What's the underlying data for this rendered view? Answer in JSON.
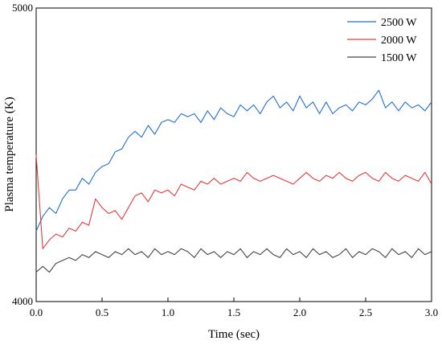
{
  "chart_data": {
    "type": "line",
    "xlabel": "Time (sec)",
    "ylabel": "Plasma temperature (K)",
    "xlim": [
      0.0,
      3.0
    ],
    "ylim": [
      4000,
      5000
    ],
    "x_ticks": [
      0.0,
      0.5,
      1.0,
      1.5,
      2.0,
      2.5,
      3.0
    ],
    "x_tick_labels": [
      "0.0",
      "0.5",
      "1.0",
      "1.5",
      "2.0",
      "2.5",
      "3.0"
    ],
    "y_tick_labels": [
      {
        "value": 4000,
        "label": "4000"
      },
      {
        "value": 5000,
        "label": "5000"
      }
    ],
    "legend_position": "top-right",
    "grid": false,
    "series": [
      {
        "name": "2500 W",
        "color": "#1f6fd6",
        "x": [
          0.0,
          0.05,
          0.1,
          0.15,
          0.2,
          0.25,
          0.3,
          0.35,
          0.4,
          0.45,
          0.5,
          0.55,
          0.6,
          0.65,
          0.7,
          0.75,
          0.8,
          0.85,
          0.9,
          0.95,
          1.0,
          1.05,
          1.1,
          1.15,
          1.2,
          1.25,
          1.3,
          1.35,
          1.4,
          1.45,
          1.5,
          1.55,
          1.6,
          1.65,
          1.7,
          1.75,
          1.8,
          1.85,
          1.9,
          1.95,
          2.0,
          2.05,
          2.1,
          2.15,
          2.2,
          2.25,
          2.3,
          2.35,
          2.4,
          2.45,
          2.5,
          2.55,
          2.6,
          2.65,
          2.7,
          2.75,
          2.8,
          2.85,
          2.9,
          2.95,
          3.0
        ],
        "values": [
          4240,
          4290,
          4320,
          4300,
          4350,
          4380,
          4380,
          4420,
          4400,
          4440,
          4460,
          4470,
          4510,
          4520,
          4560,
          4580,
          4560,
          4600,
          4570,
          4610,
          4620,
          4610,
          4640,
          4630,
          4640,
          4610,
          4650,
          4620,
          4660,
          4640,
          4630,
          4670,
          4650,
          4670,
          4640,
          4680,
          4700,
          4660,
          4680,
          4650,
          4700,
          4660,
          4680,
          4640,
          4680,
          4640,
          4660,
          4670,
          4650,
          4680,
          4670,
          4690,
          4720,
          4660,
          4680,
          4650,
          4680,
          4660,
          4670,
          4650,
          4680
        ]
      },
      {
        "name": "2000 W",
        "color": "#e03a3a",
        "x": [
          0.0,
          0.05,
          0.1,
          0.15,
          0.2,
          0.25,
          0.3,
          0.35,
          0.4,
          0.45,
          0.5,
          0.55,
          0.6,
          0.65,
          0.7,
          0.75,
          0.8,
          0.85,
          0.9,
          0.95,
          1.0,
          1.05,
          1.1,
          1.15,
          1.2,
          1.25,
          1.3,
          1.35,
          1.4,
          1.45,
          1.5,
          1.55,
          1.6,
          1.65,
          1.7,
          1.75,
          1.8,
          1.85,
          1.9,
          1.95,
          2.0,
          2.05,
          2.1,
          2.15,
          2.2,
          2.25,
          2.3,
          2.35,
          2.4,
          2.45,
          2.5,
          2.55,
          2.6,
          2.65,
          2.7,
          2.75,
          2.8,
          2.85,
          2.9,
          2.95,
          3.0
        ],
        "values": [
          4500,
          4180,
          4210,
          4230,
          4220,
          4250,
          4240,
          4270,
          4260,
          4350,
          4320,
          4300,
          4310,
          4280,
          4320,
          4360,
          4370,
          4340,
          4380,
          4370,
          4380,
          4360,
          4400,
          4390,
          4380,
          4410,
          4400,
          4420,
          4400,
          4410,
          4420,
          4410,
          4440,
          4420,
          4410,
          4420,
          4430,
          4420,
          4410,
          4400,
          4420,
          4440,
          4420,
          4410,
          4430,
          4420,
          4440,
          4420,
          4410,
          4430,
          4440,
          4420,
          4410,
          4440,
          4420,
          4410,
          4430,
          4420,
          4410,
          4440,
          4400
        ]
      },
      {
        "name": "1500 W",
        "color": "#444444",
        "x": [
          0.0,
          0.05,
          0.1,
          0.15,
          0.2,
          0.25,
          0.3,
          0.35,
          0.4,
          0.45,
          0.5,
          0.55,
          0.6,
          0.65,
          0.7,
          0.75,
          0.8,
          0.85,
          0.9,
          0.95,
          1.0,
          1.05,
          1.1,
          1.15,
          1.2,
          1.25,
          1.3,
          1.35,
          1.4,
          1.45,
          1.5,
          1.55,
          1.6,
          1.65,
          1.7,
          1.75,
          1.8,
          1.85,
          1.9,
          1.95,
          2.0,
          2.05,
          2.1,
          2.15,
          2.2,
          2.25,
          2.3,
          2.35,
          2.4,
          2.45,
          2.5,
          2.55,
          2.6,
          2.65,
          2.7,
          2.75,
          2.8,
          2.85,
          2.9,
          2.95,
          3.0
        ],
        "values": [
          4100,
          4120,
          4100,
          4130,
          4140,
          4150,
          4140,
          4160,
          4150,
          4170,
          4160,
          4150,
          4170,
          4160,
          4180,
          4160,
          4170,
          4150,
          4180,
          4160,
          4170,
          4160,
          4180,
          4170,
          4150,
          4180,
          4160,
          4170,
          4150,
          4170,
          4160,
          4180,
          4150,
          4170,
          4160,
          4180,
          4160,
          4150,
          4180,
          4160,
          4170,
          4150,
          4180,
          4160,
          4170,
          4150,
          4160,
          4180,
          4150,
          4170,
          4160,
          4180,
          4170,
          4150,
          4180,
          4160,
          4170,
          4150,
          4180,
          4160,
          4170
        ]
      }
    ]
  }
}
